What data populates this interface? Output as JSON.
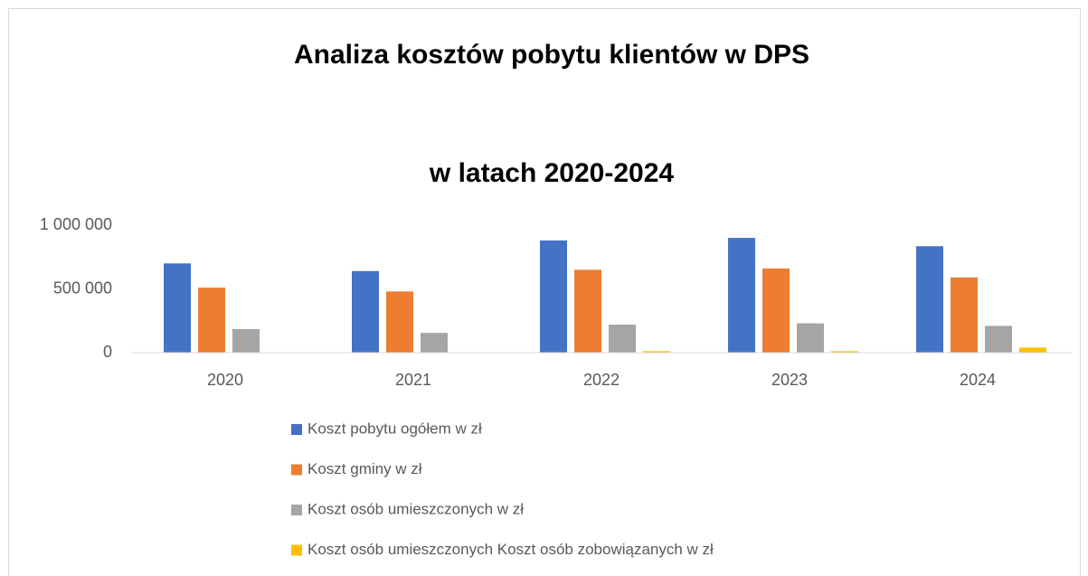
{
  "chart_data": {
    "type": "bar",
    "title": "Analiza kosztów pobytu klientów w DPS",
    "subtitle": "w latach 2020-2024",
    "categories": [
      "2020",
      "2021",
      "2022",
      "2023",
      "2024"
    ],
    "series": [
      {
        "name": "Koszt pobytu ogółem w zł",
        "color": "#4472c4",
        "values": [
          700000,
          640000,
          880000,
          900000,
          835000
        ]
      },
      {
        "name": "Koszt gminy  w zł",
        "color": "#ed7d31",
        "values": [
          510000,
          480000,
          650000,
          660000,
          590000
        ]
      },
      {
        "name": "Koszt osób umieszczonych  w zł",
        "color": "#a5a5a5",
        "values": [
          185000,
          155000,
          220000,
          230000,
          210000
        ]
      },
      {
        "name": "Koszt osób umieszczonych Koszt osób zobowiązanych w zł",
        "color": "#ffc000",
        "values": [
          0,
          0,
          12000,
          12000,
          40000
        ]
      }
    ],
    "ylim": [
      0,
      1000000
    ],
    "yticks": [
      0,
      {
        "value": 500000,
        "label": "500 000"
      },
      {
        "value": 1000000,
        "label": "1 000 000"
      }
    ],
    "grid": false,
    "legend": "bottom"
  }
}
